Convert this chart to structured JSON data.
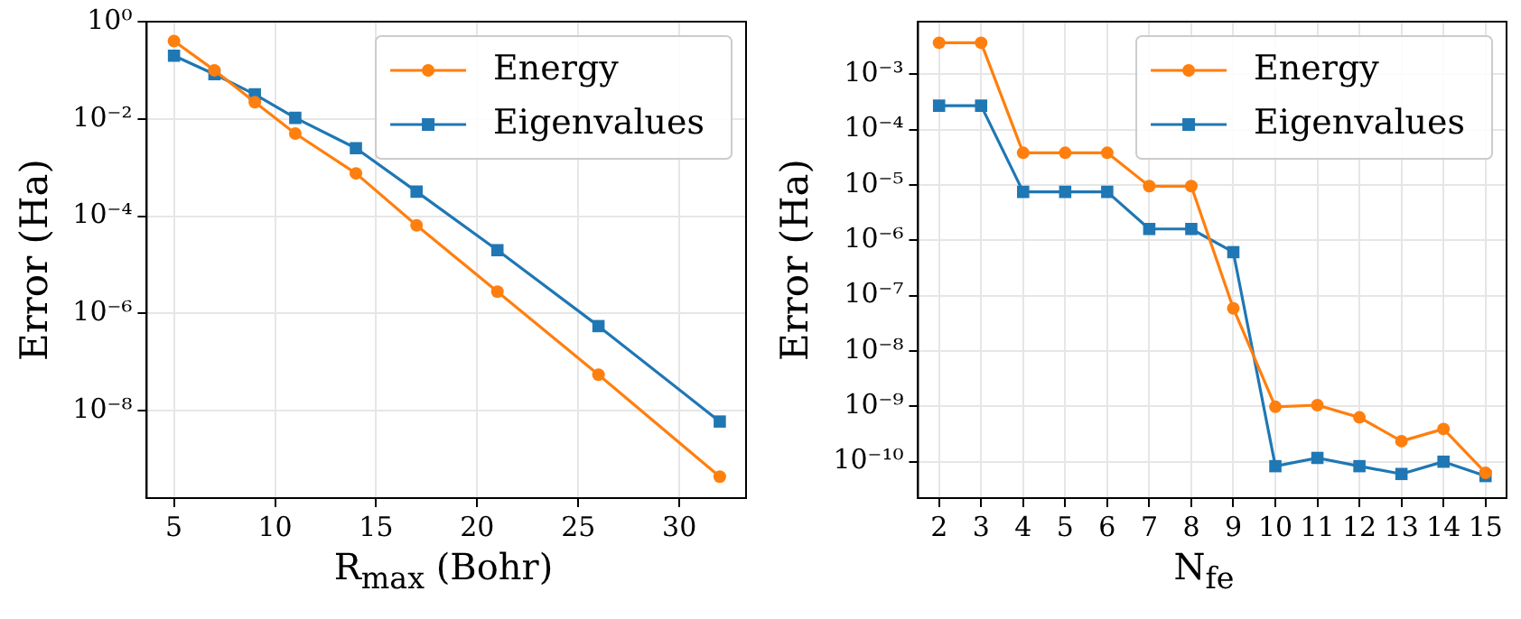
{
  "chart_data": [
    {
      "type": "line",
      "xlabel": "R$_{max}$ (Bohr)",
      "ylabel": "Error (Ha)",
      "x": [
        5,
        7,
        9,
        11,
        14,
        17,
        21,
        26,
        32
      ],
      "series": [
        {
          "name": "Energy",
          "color": "#ff7f0e",
          "marker": "circle",
          "values": [
            0.4,
            0.1,
            0.022,
            0.005,
            0.00076,
            6.5e-05,
            2.8e-06,
            5.5e-08,
            4.4e-10
          ]
        },
        {
          "name": "Eigenvalues",
          "color": "#1f77b4",
          "marker": "square",
          "values": [
            0.2,
            0.083,
            0.032,
            0.0105,
            0.0025,
            0.00032,
            2e-05,
            5.5e-07,
            6e-09
          ]
        }
      ],
      "xlim": [
        3.65,
        33.3
      ],
      "xticks": [
        5,
        10,
        15,
        20,
        25,
        30
      ],
      "ylim": [
        1.6e-10,
        1
      ],
      "yticks": [
        {
          "value": 1,
          "label": "10⁰"
        },
        {
          "value": 0.01,
          "label": "10⁻²"
        },
        {
          "value": 0.0001,
          "label": "10⁻⁴"
        },
        {
          "value": 1e-06,
          "label": "10⁻⁶"
        },
        {
          "value": 1e-08,
          "label": "10⁻⁸"
        }
      ],
      "log": "y",
      "grid": true,
      "legend": "top right"
    },
    {
      "type": "line",
      "xlabel": "N$_{fe}$",
      "ylabel": "Error (Ha)",
      "x": [
        2,
        3,
        4,
        5,
        6,
        7,
        8,
        9,
        10,
        11,
        12,
        13,
        14,
        15
      ],
      "series": [
        {
          "name": "Energy",
          "color": "#ff7f0e",
          "marker": "circle",
          "values": [
            0.0037,
            0.0037,
            3.8e-05,
            3.8e-05,
            3.8e-05,
            9.5e-06,
            9.5e-06,
            5.9e-08,
            9.8e-10,
            1.05e-09,
            6.3e-10,
            2.35e-10,
            3.9e-10,
            6.3e-11
          ]
        },
        {
          "name": "Eigenvalues",
          "color": "#1f77b4",
          "marker": "square",
          "values": [
            0.00027,
            0.00027,
            7.5e-06,
            7.5e-06,
            7.5e-06,
            1.6e-06,
            1.6e-06,
            6.1e-07,
            8.3e-11,
            1.17e-10,
            8.3e-11,
            6e-11,
            1e-10,
            5.5e-11
          ]
        }
      ],
      "xlim": [
        1.5,
        15.5
      ],
      "xticks": [
        2,
        3,
        4,
        5,
        6,
        7,
        8,
        9,
        10,
        11,
        12,
        13,
        14,
        15
      ],
      "ylim": [
        2.2e-11,
        0.0089
      ],
      "yticks": [
        {
          "value": 0.001,
          "label": "10⁻³"
        },
        {
          "value": 0.0001,
          "label": "10⁻⁴"
        },
        {
          "value": 1e-05,
          "label": "10⁻⁵"
        },
        {
          "value": 1e-06,
          "label": "10⁻⁶"
        },
        {
          "value": 1e-07,
          "label": "10⁻⁷"
        },
        {
          "value": 1e-08,
          "label": "10⁻⁸"
        },
        {
          "value": 1e-09,
          "label": "10⁻⁹"
        },
        {
          "value": 1e-10,
          "label": "10⁻¹⁰"
        }
      ],
      "log": "y",
      "grid": true,
      "legend": "top right"
    }
  ]
}
